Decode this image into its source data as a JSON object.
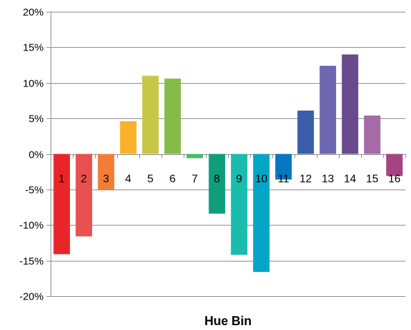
{
  "chart_data": {
    "type": "bar",
    "categories": [
      "1",
      "2",
      "3",
      "4",
      "5",
      "6",
      "7",
      "8",
      "9",
      "10",
      "11",
      "12",
      "13",
      "14",
      "15",
      "16"
    ],
    "values": [
      -14.1,
      -11.6,
      -5.1,
      4.6,
      11.0,
      10.6,
      -0.6,
      -8.4,
      -14.2,
      -16.6,
      -3.6,
      6.1,
      12.4,
      14.0,
      5.4,
      -3.1
    ],
    "colors": [
      "#e8262a",
      "#e8514f",
      "#f47d35",
      "#fbb22a",
      "#c8c747",
      "#84bc4a",
      "#4fb86a",
      "#0f9e7b",
      "#1abcad",
      "#05a5c7",
      "#0777c0",
      "#3a5ea9",
      "#6d67b2",
      "#6a4a8d",
      "#a66aa6",
      "#a64482"
    ],
    "title": "",
    "xlabel": "Hue Bin",
    "ylabel": "",
    "ylim": [
      -20,
      20
    ],
    "yticks": [
      20,
      15,
      10,
      5,
      0,
      -5,
      -10,
      -15,
      -20
    ],
    "ytick_format": "percent",
    "grid": true,
    "legend": "none"
  }
}
